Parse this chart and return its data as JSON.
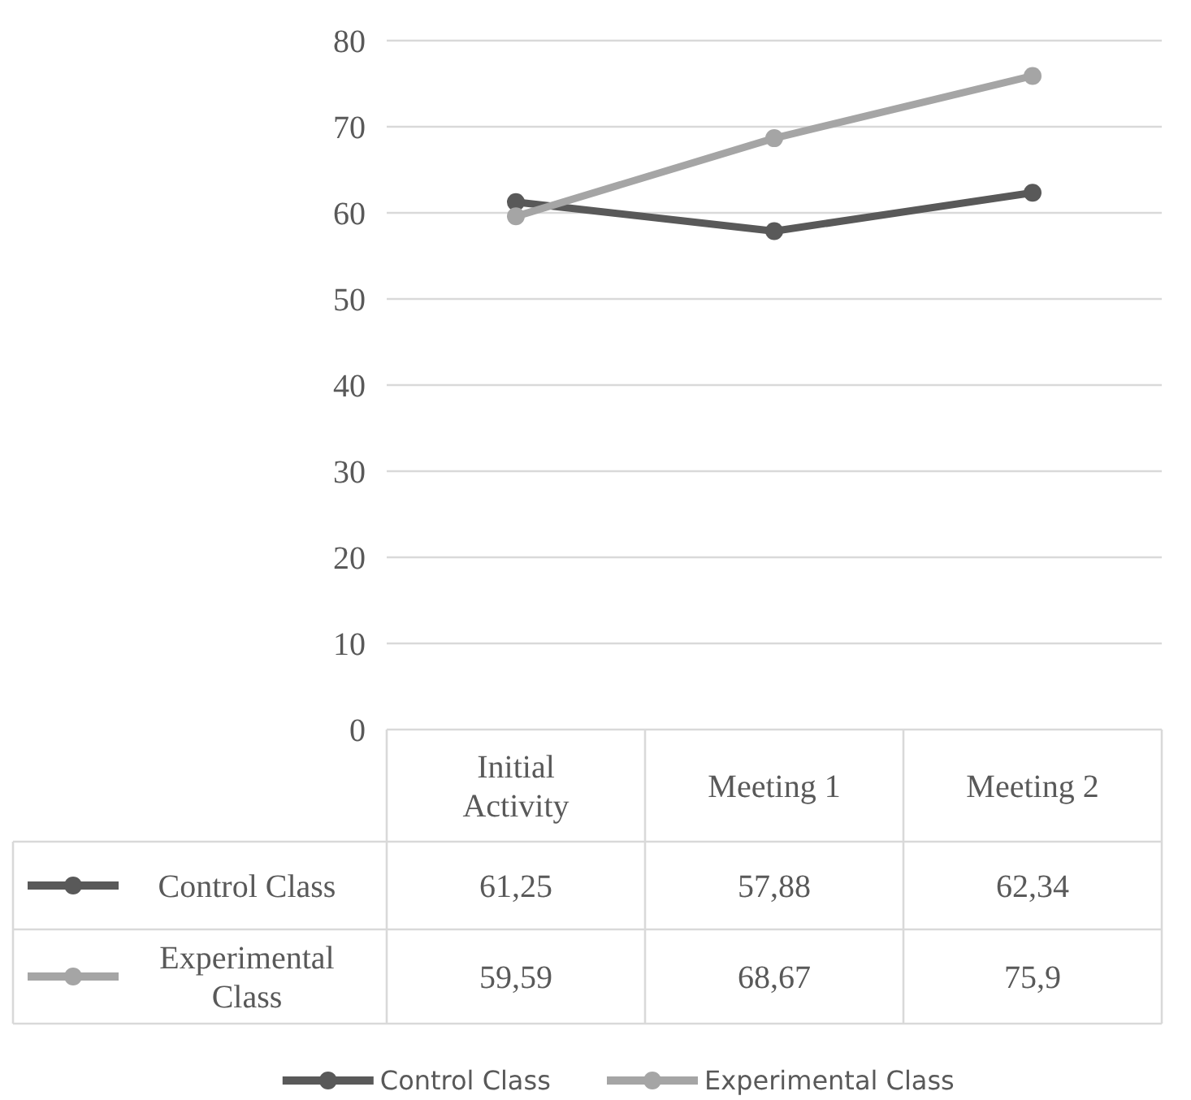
{
  "chart_data": {
    "type": "line",
    "categories": [
      "Initial Activity",
      "Meeting 1",
      "Meeting 2"
    ],
    "series": [
      {
        "name": "Control Class",
        "color": "#595959",
        "values": [
          61.25,
          57.88,
          62.34
        ],
        "value_labels": [
          "61,25",
          "57,88",
          "62,34"
        ]
      },
      {
        "name": "Experimental Class",
        "color": "#a5a5a5",
        "values": [
          59.59,
          68.67,
          75.9
        ],
        "value_labels": [
          "59,59",
          "68,67",
          "75,9"
        ]
      }
    ],
    "ylim": [
      0,
      80
    ],
    "yticks": [
      0,
      10,
      20,
      30,
      40,
      50,
      60,
      70,
      80
    ],
    "grid": "y",
    "legend": "bottom",
    "marker": "circle",
    "line_style": "solid"
  }
}
